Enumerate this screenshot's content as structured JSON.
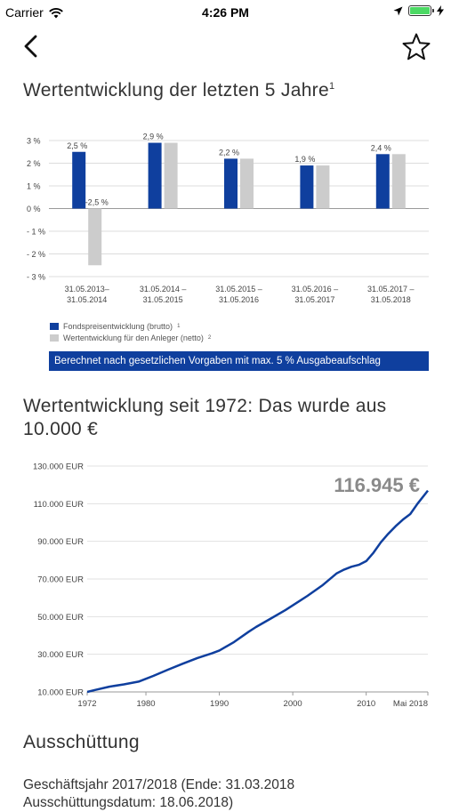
{
  "status_bar": {
    "carrier": "Carrier",
    "time": "4:26 PM",
    "battery_percent": 100
  },
  "nav": {
    "back_icon": "chevron-left-icon",
    "favorite_icon": "star-outline-icon"
  },
  "section1": {
    "title": "Wertentwicklung der letzten 5 Jahre",
    "title_footnote": "1",
    "banner": "Berechnet nach gesetzlichen Vorgaben mit max. 5 % Ausgabeaufschlag",
    "legend": [
      {
        "label": "Fondspreisentwicklung (brutto)",
        "footnote": "1",
        "color": "#0f3f9e"
      },
      {
        "label": "Wertentwicklung für den Anleger (netto)",
        "footnote": "2",
        "color": "#cccccc"
      }
    ]
  },
  "section2": {
    "title": "Wertentwicklung seit 1972: Das wurde aus 10.000 €",
    "final_value_label": "116.945 €"
  },
  "section3": {
    "title": "Ausschüttung",
    "text": "Geschäftsjahr 2017/2018 (Ende: 31.03.2018 Ausschüttungsdatum: 18.06.2018)"
  },
  "chart_data": [
    {
      "type": "bar",
      "categories": [
        "31.05.2013–\n31.05.2014",
        "31.05.2014 –\n31.05.2015",
        "31.05.2015 –\n31.05.2016",
        "31.05.2016 –\n31.05.2017",
        "31.05.2017 –\n31.05.2018"
      ],
      "series": [
        {
          "name": "Fondspreisentwicklung (brutto)",
          "values": [
            2.5,
            2.9,
            2.2,
            1.9,
            2.4
          ],
          "labels": [
            "2,5 %",
            "2,9 %",
            "2,2 %",
            "1,9 %",
            "2,4 %"
          ],
          "color": "#0f3f9e"
        },
        {
          "name": "Wertentwicklung für den Anleger (netto)",
          "values": [
            -2.5,
            2.9,
            2.2,
            1.9,
            2.4
          ],
          "labels": [
            "-2,5 %",
            "",
            "",
            "",
            ""
          ],
          "color": "#cccccc"
        }
      ],
      "yticks": [
        3,
        2,
        1,
        0,
        -1,
        -2,
        -3
      ],
      "ytick_labels": [
        "3 %",
        "2 %",
        "1 %",
        "0 %",
        "- 1 %",
        "- 2 %",
        "- 3 %"
      ],
      "ylim": [
        -3,
        3
      ],
      "grid": true
    },
    {
      "type": "line",
      "x": [
        1972,
        1973,
        1975,
        1977,
        1979,
        1981,
        1983,
        1985,
        1987,
        1989,
        1990,
        1992,
        1994,
        1995,
        1997,
        1999,
        2001,
        2002,
        2004,
        2006,
        2007,
        2008,
        2009,
        2010,
        2011,
        2012,
        2013,
        2014,
        2015,
        2016,
        2017,
        2018.4
      ],
      "y": [
        10000,
        11000,
        12800,
        14000,
        15500,
        18500,
        21800,
        25000,
        28000,
        30500,
        32000,
        36500,
        42000,
        44500,
        49000,
        53500,
        58500,
        61000,
        66500,
        73000,
        75000,
        76500,
        77500,
        79500,
        84000,
        89500,
        94000,
        98000,
        101500,
        104500,
        110000,
        116945
      ],
      "series": [
        {
          "color": "#0f3f9e"
        }
      ],
      "yticks": [
        10000,
        30000,
        50000,
        70000,
        90000,
        110000,
        130000
      ],
      "ytick_labels": [
        "10.000 EUR",
        "30.000 EUR",
        "50.000 EUR",
        "70.000 EUR",
        "90.000 EUR",
        "110.000 EUR",
        "130.000 EUR"
      ],
      "xticks": [
        1972,
        1980,
        1990,
        2000,
        2010,
        2018.4
      ],
      "xtick_labels": [
        "1972",
        "1980",
        "1990",
        "2000",
        "2010",
        "Mai 2018"
      ],
      "xlim": [
        1972,
        2018.4
      ],
      "ylim": [
        10000,
        130000
      ],
      "grid": true
    }
  ]
}
